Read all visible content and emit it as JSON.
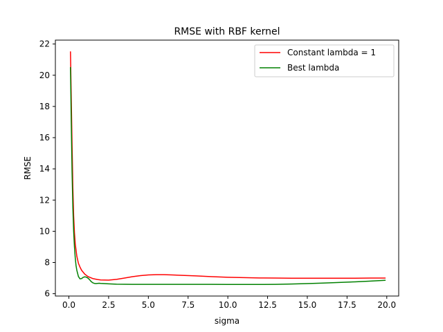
{
  "chart_data": {
    "type": "line",
    "title": "RMSE with RBF kernel",
    "xlabel": "sigma",
    "ylabel": "RMSE",
    "xlim": [
      -0.85,
      20.75
    ],
    "ylim": [
      5.85,
      22.25
    ],
    "xticks": [
      0.0,
      2.5,
      5.0,
      7.5,
      10.0,
      12.5,
      15.0,
      17.5,
      20.0
    ],
    "xtick_labels": [
      "0.0",
      "2.5",
      "5.0",
      "7.5",
      "10.0",
      "12.5",
      "15.0",
      "17.5",
      "20.0"
    ],
    "yticks": [
      6,
      8,
      10,
      12,
      14,
      16,
      18,
      20,
      22
    ],
    "ytick_labels": [
      "6",
      "8",
      "10",
      "12",
      "14",
      "16",
      "18",
      "20",
      "22"
    ],
    "grid": false,
    "legend_position": "top-right",
    "series": [
      {
        "name": "Constant lambda = 1",
        "color": "#ff0000",
        "x": [
          0.1,
          0.15,
          0.2,
          0.25,
          0.3,
          0.35,
          0.4,
          0.5,
          0.6,
          0.7,
          0.8,
          1.0,
          1.2,
          1.5,
          1.8,
          2.0,
          2.5,
          3.0,
          3.5,
          4.0,
          4.5,
          5.0,
          5.5,
          6.0,
          6.5,
          7.0,
          8.0,
          9.0,
          10.0,
          11.0,
          12.0,
          13.0,
          14.0,
          15.0,
          16.0,
          17.0,
          18.0,
          19.0,
          19.9
        ],
        "y": [
          21.5,
          18.5,
          15.5,
          12.8,
          11.0,
          9.9,
          9.2,
          8.4,
          7.95,
          7.7,
          7.5,
          7.25,
          7.1,
          6.97,
          6.91,
          6.88,
          6.87,
          6.92,
          7.0,
          7.09,
          7.16,
          7.2,
          7.22,
          7.22,
          7.2,
          7.18,
          7.14,
          7.09,
          7.05,
          7.03,
          7.01,
          7.0,
          6.99,
          6.99,
          6.99,
          6.99,
          6.99,
          7.0,
          7.0
        ]
      },
      {
        "name": "Best lambda",
        "color": "#008000",
        "x": [
          0.1,
          0.15,
          0.2,
          0.25,
          0.3,
          0.35,
          0.4,
          0.45,
          0.5,
          0.6,
          0.7,
          0.8,
          0.9,
          1.0,
          1.1,
          1.2,
          1.3,
          1.4,
          1.5,
          1.6,
          1.7,
          1.8,
          1.9,
          2.0,
          2.5,
          3.0,
          4.0,
          5.0,
          6.0,
          7.0,
          8.0,
          9.0,
          10.0,
          11.0,
          12.0,
          13.0,
          14.0,
          15.0,
          16.0,
          17.0,
          18.0,
          19.0,
          19.9
        ],
        "y": [
          20.5,
          17.0,
          13.8,
          11.5,
          10.0,
          9.0,
          8.3,
          7.8,
          7.5,
          7.1,
          6.95,
          6.97,
          7.05,
          7.08,
          7.06,
          7.0,
          6.9,
          6.78,
          6.7,
          6.66,
          6.65,
          6.66,
          6.67,
          6.66,
          6.63,
          6.61,
          6.6,
          6.6,
          6.6,
          6.6,
          6.6,
          6.6,
          6.59,
          6.59,
          6.59,
          6.6,
          6.62,
          6.65,
          6.68,
          6.72,
          6.76,
          6.81,
          6.86
        ]
      }
    ]
  }
}
